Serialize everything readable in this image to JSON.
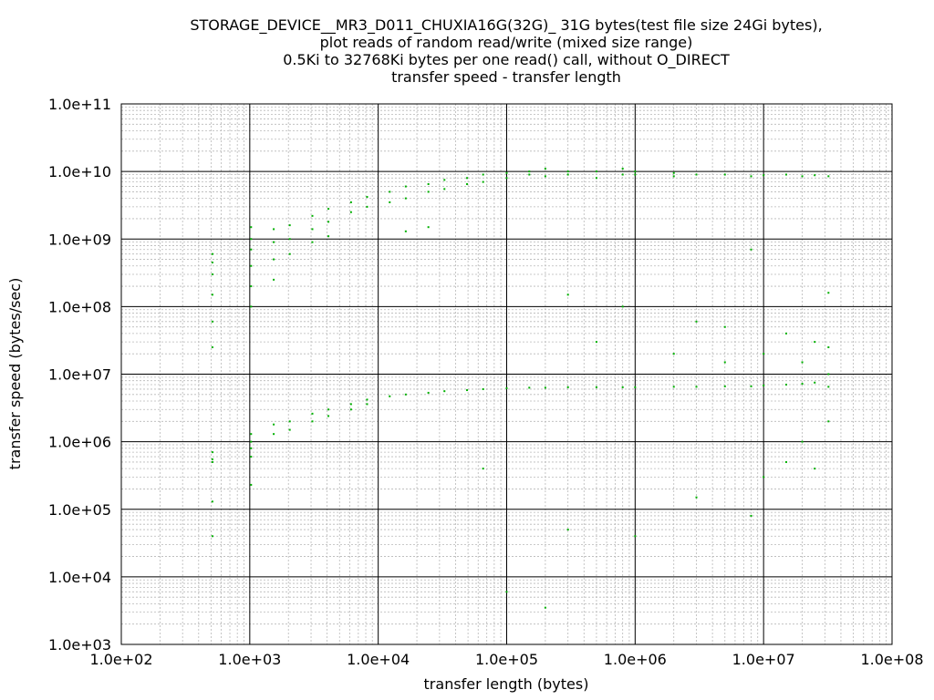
{
  "chart_data": {
    "type": "scatter",
    "title_lines": [
      "STORAGE_DEVICE__MR3_D011_CHUXIA16G(32G)_ 31G bytes(test file size 24Gi bytes),",
      "plot reads of random read/write (mixed size range)",
      "0.5Ki to 32768Ki bytes per one read() call, without O_DIRECT",
      "transfer speed - transfer length"
    ],
    "xlabel": "transfer length (bytes)",
    "ylabel": "transfer speed (bytes/sec)",
    "x_scale": "log",
    "y_scale": "log",
    "xlim": [
      100,
      100000000
    ],
    "ylim": [
      1000,
      100000000000
    ],
    "x_ticks": [
      "1.0e+02",
      "1.0e+03",
      "1.0e+04",
      "1.0e+05",
      "1.0e+06",
      "1.0e+07",
      "1.0e+08"
    ],
    "y_ticks": [
      "1.0e+03",
      "1.0e+04",
      "1.0e+05",
      "1.0e+06",
      "1.0e+07",
      "1.0e+08",
      "1.0e+09",
      "1.0e+10",
      "1.0e+11"
    ],
    "grid": true,
    "series_color": "#00b000",
    "series": [
      {
        "points": [
          [
            512,
            600000000
          ],
          [
            512,
            450000000
          ],
          [
            512,
            300000000
          ],
          [
            512,
            150000000
          ],
          [
            512,
            60000000
          ],
          [
            512,
            25000000
          ],
          [
            512,
            700000
          ],
          [
            512,
            550000
          ],
          [
            512,
            500000
          ],
          [
            512,
            130000
          ],
          [
            512,
            40000
          ],
          [
            1024,
            1500000000
          ],
          [
            1024,
            1000000000
          ],
          [
            1024,
            700000000
          ],
          [
            1024,
            400000000
          ],
          [
            1024,
            200000000
          ],
          [
            1024,
            100000000
          ],
          [
            1024,
            1300000
          ],
          [
            1024,
            1000000
          ],
          [
            1024,
            800000
          ],
          [
            1024,
            600000
          ],
          [
            1024,
            230000
          ],
          [
            1536,
            1400000000
          ],
          [
            1536,
            900000000
          ],
          [
            1536,
            500000000
          ],
          [
            1536,
            250000000
          ],
          [
            1536,
            1800000
          ],
          [
            1536,
            1300000
          ],
          [
            2048,
            1600000000
          ],
          [
            2048,
            1000000000
          ],
          [
            2048,
            600000000
          ],
          [
            2048,
            2000000
          ],
          [
            2048,
            1500000
          ],
          [
            3072,
            2200000000
          ],
          [
            3072,
            1400000000
          ],
          [
            3072,
            900000000
          ],
          [
            3072,
            2600000
          ],
          [
            3072,
            2000000
          ],
          [
            4096,
            2800000000
          ],
          [
            4096,
            1800000000
          ],
          [
            4096,
            1100000000
          ],
          [
            4096,
            3000000
          ],
          [
            4096,
            2400000
          ],
          [
            6144,
            3500000000
          ],
          [
            6144,
            2500000000
          ],
          [
            6144,
            3600000
          ],
          [
            6144,
            3000000
          ],
          [
            8192,
            4200000000
          ],
          [
            8192,
            3000000000
          ],
          [
            8192,
            4200000
          ],
          [
            8192,
            3600000
          ],
          [
            12288,
            5000000000
          ],
          [
            12288,
            3500000000
          ],
          [
            12288,
            4700000
          ],
          [
            16384,
            6000000000
          ],
          [
            16384,
            4000000000
          ],
          [
            16384,
            1300000000
          ],
          [
            16384,
            5000000
          ],
          [
            24576,
            6500000000
          ],
          [
            24576,
            5000000000
          ],
          [
            24576,
            1500000000
          ],
          [
            24576,
            5300000
          ],
          [
            32768,
            7500000000
          ],
          [
            32768,
            5500000000
          ],
          [
            32768,
            5600000
          ],
          [
            49152,
            8000000000
          ],
          [
            49152,
            6500000000
          ],
          [
            49152,
            5800000
          ],
          [
            65536,
            9000000000
          ],
          [
            65536,
            7000000000
          ],
          [
            65536,
            6000000
          ],
          [
            65536,
            400000
          ],
          [
            100000,
            9500000000
          ],
          [
            100000,
            8000000000
          ],
          [
            100000,
            6200000
          ],
          [
            100000,
            6000
          ],
          [
            150000,
            10000000000
          ],
          [
            150000,
            9000000000
          ],
          [
            150000,
            6300000
          ],
          [
            200000,
            11000000000
          ],
          [
            200000,
            8500000000
          ],
          [
            200000,
            6300000
          ],
          [
            200000,
            3500
          ],
          [
            300000,
            10000000000
          ],
          [
            300000,
            9000000000
          ],
          [
            300000,
            6400000
          ],
          [
            300000,
            150000000
          ],
          [
            300000,
            50000
          ],
          [
            500000,
            10000000000
          ],
          [
            500000,
            8000000000
          ],
          [
            500000,
            6400000
          ],
          [
            500000,
            30000000
          ],
          [
            800000,
            11000000000
          ],
          [
            800000,
            9000000000
          ],
          [
            800000,
            6400000
          ],
          [
            800000,
            100000000
          ],
          [
            1000000,
            10000000000
          ],
          [
            1000000,
            9000000000
          ],
          [
            1000000,
            6400000
          ],
          [
            1000000,
            40000
          ],
          [
            2000000,
            9500000000
          ],
          [
            2000000,
            8500000000
          ],
          [
            2000000,
            6500000
          ],
          [
            2000000,
            20000000
          ],
          [
            3000000,
            9000000000
          ],
          [
            3000000,
            6500000
          ],
          [
            3000000,
            60000000
          ],
          [
            3000000,
            150000
          ],
          [
            5000000,
            9000000000
          ],
          [
            5000000,
            6600000
          ],
          [
            5000000,
            15000000
          ],
          [
            5000000,
            50000000
          ],
          [
            8000000,
            8500000000
          ],
          [
            8000000,
            6600000
          ],
          [
            8000000,
            700000000
          ],
          [
            8000000,
            80000
          ],
          [
            10000000,
            8800000000
          ],
          [
            10000000,
            6800000
          ],
          [
            10000000,
            20000000
          ],
          [
            10000000,
            300000
          ],
          [
            15000000,
            9000000000
          ],
          [
            15000000,
            7000000
          ],
          [
            15000000,
            40000000
          ],
          [
            15000000,
            500000
          ],
          [
            20000000,
            8500000000
          ],
          [
            20000000,
            7200000
          ],
          [
            20000000,
            15000000
          ],
          [
            20000000,
            1000000
          ],
          [
            25000000,
            8800000000
          ],
          [
            25000000,
            7500000
          ],
          [
            25000000,
            30000000
          ],
          [
            25000000,
            400000
          ],
          [
            32000000,
            8500000000
          ],
          [
            32000000,
            6500000
          ],
          [
            32000000,
            10000000
          ],
          [
            32000000,
            25000000
          ],
          [
            32000000,
            160000000
          ],
          [
            32000000,
            2000000
          ]
        ]
      }
    ]
  }
}
